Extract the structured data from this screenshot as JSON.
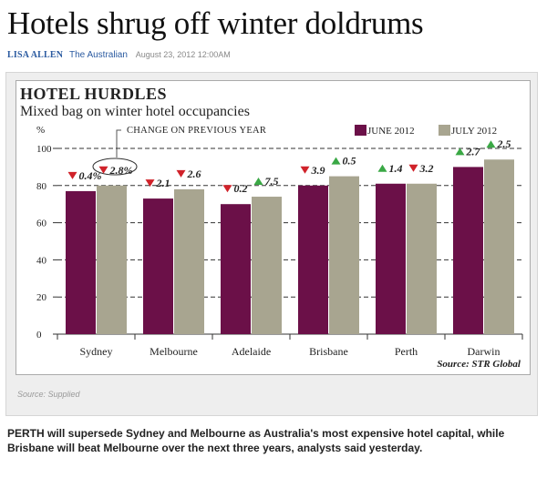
{
  "article": {
    "headline": "Hotels shrug off winter doldrums",
    "author": "LISA ALLEN",
    "source": "The Australian",
    "date": "August 23, 2012 12:00AM",
    "caption": "Source: Supplied",
    "body": "PERTH will supersede Sydney and Melbourne as Australia's most expensive hotel capital, while Brisbane will beat Melbourne over the next three years, analysts said yesterday."
  },
  "chart_data": {
    "type": "bar",
    "title": "HOTEL HURDLES",
    "subtitle": "Mixed bag on winter hotel occupancies",
    "ylabel": "%",
    "ylim": [
      0,
      100
    ],
    "yticks": [
      0,
      20,
      40,
      60,
      80,
      100
    ],
    "grid": "dashed",
    "legend_position": "top-right",
    "change_legend": "CHANGE ON PREVIOUS YEAR",
    "source": "Source: STR Global",
    "categories": [
      "Sydney",
      "Melbourne",
      "Adelaide",
      "Brisbane",
      "Perth",
      "Darwin"
    ],
    "series": [
      {
        "name": "JUNE 2012",
        "color": "#6b1048",
        "values": [
          77,
          73,
          70,
          80,
          81,
          90
        ],
        "changes": [
          {
            "dir": "down",
            "label": "0.4%"
          },
          {
            "dir": "down",
            "label": "2.1"
          },
          {
            "dir": "down",
            "label": "0.2"
          },
          {
            "dir": "down",
            "label": "3.9"
          },
          {
            "dir": "up",
            "label": "1.4"
          },
          {
            "dir": "up",
            "label": "2.7"
          }
        ]
      },
      {
        "name": "JULY 2012",
        "color": "#a8a590",
        "values": [
          80,
          78,
          74,
          85,
          81,
          94
        ],
        "changes": [
          {
            "dir": "down",
            "label": "2.8%"
          },
          {
            "dir": "down",
            "label": "2.6"
          },
          {
            "dir": "up",
            "label": "7.5"
          },
          {
            "dir": "up",
            "label": "0.5"
          },
          {
            "dir": "down",
            "label": "3.2"
          },
          {
            "dir": "up",
            "label": "2.5"
          }
        ]
      }
    ],
    "up_color": "#3aa845",
    "down_color": "#d0222a"
  }
}
